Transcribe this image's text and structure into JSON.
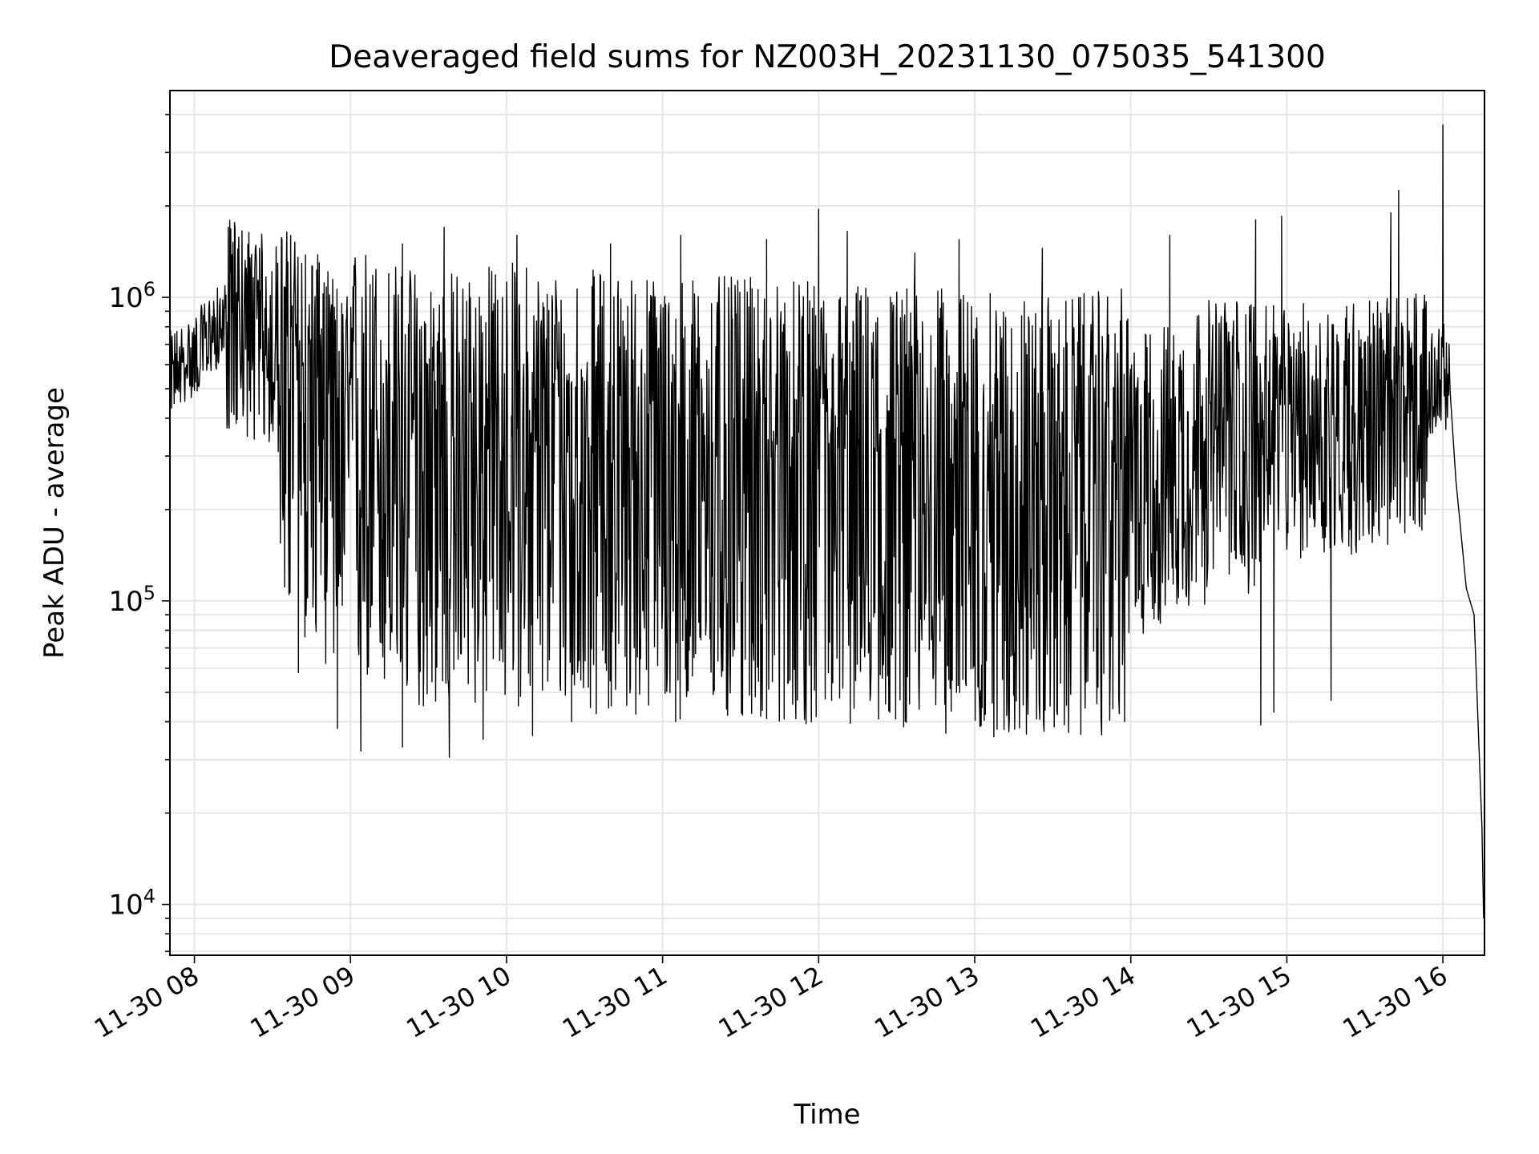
{
  "chart_data": {
    "type": "line",
    "title": "Deaveraged field sums for NZ003H_20231130_075035_541300",
    "xlabel": "Time",
    "ylabel": "Peak ADU - average",
    "yscale": "log",
    "ylim": [
      6800,
      4800000
    ],
    "xlim": [
      "2023-11-30T07:50:35",
      "2023-11-30T16:16:00"
    ],
    "grid": true,
    "line_color": "#000000",
    "grid_color": "#e6e6e6",
    "x_ticks": [
      {
        "t": "2023-11-30T08:00",
        "label": "11-30 08"
      },
      {
        "t": "2023-11-30T09:00",
        "label": "11-30 09"
      },
      {
        "t": "2023-11-30T10:00",
        "label": "11-30 10"
      },
      {
        "t": "2023-11-30T11:00",
        "label": "11-30 11"
      },
      {
        "t": "2023-11-30T12:00",
        "label": "11-30 12"
      },
      {
        "t": "2023-11-30T13:00",
        "label": "11-30 13"
      },
      {
        "t": "2023-11-30T14:00",
        "label": "11-30 14"
      },
      {
        "t": "2023-11-30T15:00",
        "label": "11-30 15"
      },
      {
        "t": "2023-11-30T16:00",
        "label": "11-30 16"
      }
    ],
    "y_ticks": [
      {
        "value": 10000,
        "base": "10",
        "exp": "4"
      },
      {
        "value": 100000,
        "base": "10",
        "exp": "5"
      },
      {
        "value": 1000000,
        "base": "10",
        "exp": "6"
      }
    ],
    "series": [
      {
        "values": [
          [
            "2023-11-30T07:50:35",
            550000
          ],
          [
            "2023-11-30T08:00",
            620000
          ],
          [
            "2023-11-30T08:07",
            750000
          ],
          [
            "2023-11-30T08:15",
            820000
          ],
          [
            "2023-11-30T08:30",
            700000
          ],
          [
            "2023-11-30T08:45",
            560000
          ],
          [
            "2023-11-30T09:00",
            380000
          ],
          [
            "2023-11-30T09:20",
            310000
          ],
          [
            "2023-11-30T09:40",
            300000
          ],
          [
            "2023-11-30T10:00",
            320000
          ],
          [
            "2023-11-30T10:30",
            300000
          ],
          [
            "2023-11-30T11:00",
            290000
          ],
          [
            "2023-11-30T11:30",
            280000
          ],
          [
            "2023-11-30T12:00",
            270000
          ],
          [
            "2023-11-30T12:30",
            270000
          ],
          [
            "2023-11-30T13:00",
            250000
          ],
          [
            "2023-11-30T13:30",
            240000
          ],
          [
            "2023-11-30T14:00",
            260000
          ],
          [
            "2023-11-30T14:30",
            350000
          ],
          [
            "2023-11-30T15:00",
            380000
          ],
          [
            "2023-11-30T15:30",
            400000
          ],
          [
            "2023-11-30T15:50",
            430000
          ],
          [
            "2023-11-30T16:00",
            560000
          ],
          [
            "2023-11-30T16:03",
            450000
          ],
          [
            "2023-11-30T16:05",
            250000
          ],
          [
            "2023-11-30T16:09",
            110000
          ],
          [
            "2023-11-30T16:12",
            90000
          ],
          [
            "2023-11-30T16:15",
            18000
          ],
          [
            "2023-11-30T16:15:40",
            9000
          ]
        ],
        "spikes": [
          [
            "2023-11-30T08:13",
            1700000
          ],
          [
            "2023-11-30T08:25",
            1450000
          ],
          [
            "2023-11-30T08:37",
            1600000
          ],
          [
            "2023-11-30T08:48",
            1300000
          ],
          [
            "2023-11-30T09:20",
            1500000
          ],
          [
            "2023-11-30T09:36",
            1700000
          ],
          [
            "2023-11-30T10:04",
            1600000
          ],
          [
            "2023-11-30T10:40",
            1500000
          ],
          [
            "2023-11-30T11:07",
            1600000
          ],
          [
            "2023-11-30T11:40",
            1550000
          ],
          [
            "2023-11-30T12:00",
            1950000
          ],
          [
            "2023-11-30T12:11",
            1650000
          ],
          [
            "2023-11-30T12:37",
            1400000
          ],
          [
            "2023-11-30T12:54",
            1550000
          ],
          [
            "2023-11-30T13:26",
            1450000
          ],
          [
            "2023-11-30T14:15",
            1600000
          ],
          [
            "2023-11-30T14:48",
            1800000
          ],
          [
            "2023-11-30T14:58",
            1850000
          ],
          [
            "2023-11-30T15:40",
            1900000
          ],
          [
            "2023-11-30T15:43",
            2250000
          ],
          [
            "2023-11-30T16:00",
            3700000
          ]
        ],
        "dips": [
          [
            "2023-11-30T08:40",
            58000
          ],
          [
            "2023-11-30T08:55",
            38000
          ],
          [
            "2023-11-30T09:04",
            32000
          ],
          [
            "2023-11-30T09:20",
            33000
          ],
          [
            "2023-11-30T09:38",
            30500
          ],
          [
            "2023-11-30T09:51",
            35000
          ],
          [
            "2023-11-30T10:10",
            36000
          ],
          [
            "2023-11-30T10:25",
            40000
          ],
          [
            "2023-11-30T11:05",
            40000
          ],
          [
            "2023-11-30T11:25",
            42000
          ],
          [
            "2023-11-30T11:40",
            41000
          ],
          [
            "2023-11-30T12:05",
            47000
          ],
          [
            "2023-11-30T12:50",
            55000
          ],
          [
            "2023-11-30T13:29",
            45000
          ],
          [
            "2023-11-30T13:47",
            50000
          ],
          [
            "2023-11-30T14:50",
            39000
          ],
          [
            "2023-11-30T14:55",
            43000
          ],
          [
            "2023-11-30T15:17",
            47000
          ]
        ]
      }
    ]
  }
}
